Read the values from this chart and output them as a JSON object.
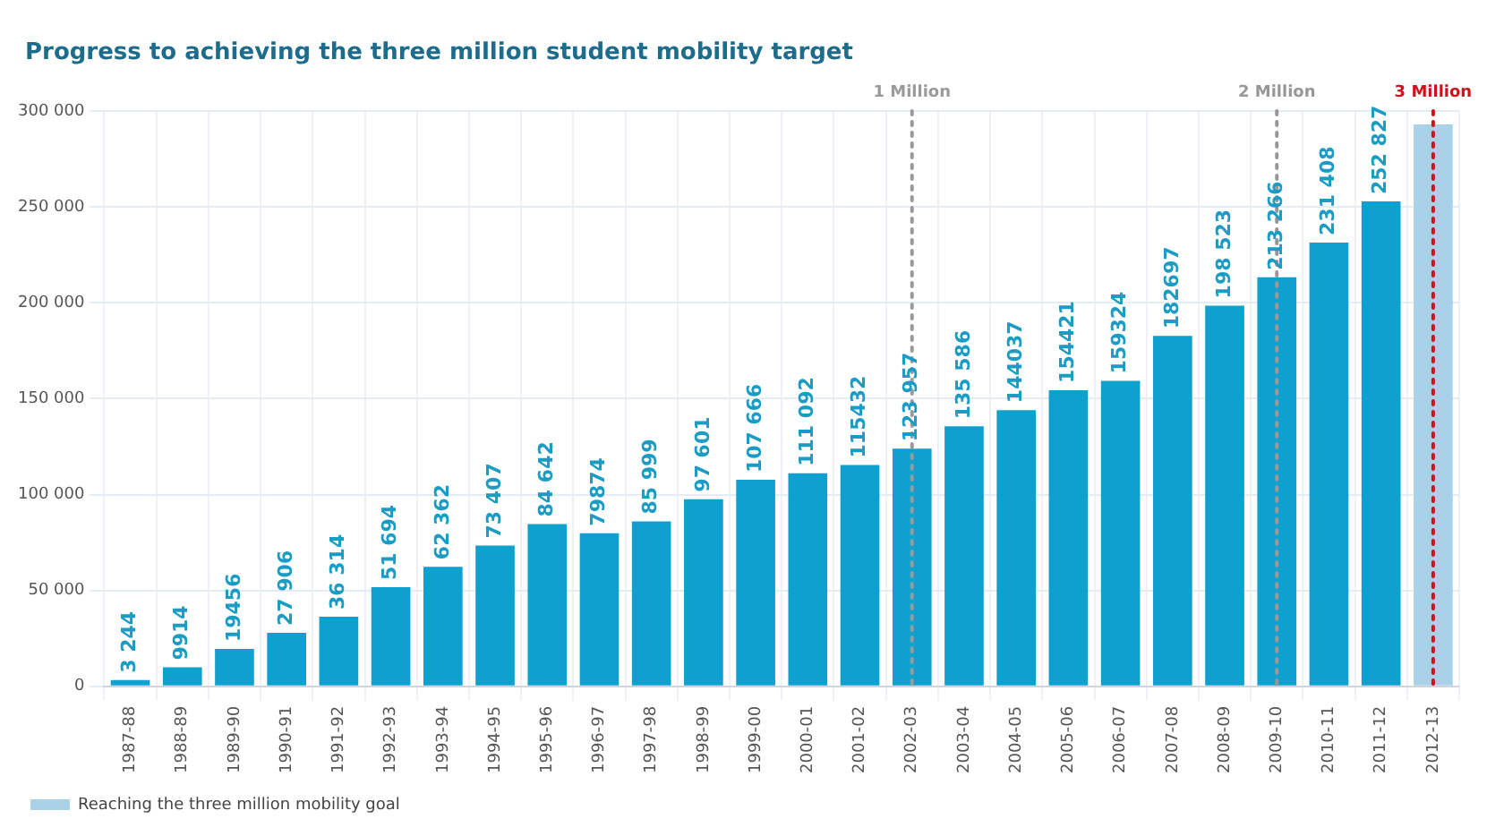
{
  "chart_data": {
    "type": "bar",
    "title": "Progress to achieving the three million student mobility target",
    "categories": [
      "1987-88",
      "1988-89",
      "1989-90",
      "1990-91",
      "1991-92",
      "1992-93",
      "1993-94",
      "1994-95",
      "1995-96",
      "1996-97",
      "1997-98",
      "1998-99",
      "1999-00",
      "2000-01",
      "2001-02",
      "2002-03",
      "2003-04",
      "2004-05",
      "2005-06",
      "2006-07",
      "2007-08",
      "2008-09",
      "2009-10",
      "2010-11",
      "2011-12",
      "2012-13"
    ],
    "stacked": true,
    "series": [
      {
        "color": "#0ea1cf",
        "values": [
          3244,
          9914,
          19456,
          27906,
          36314,
          51694,
          62362,
          73407,
          84642,
          79874,
          85999,
          97601,
          107666,
          111092,
          115432,
          123957,
          135586,
          144037,
          154421,
          159324,
          182697,
          198523,
          213266,
          231408,
          252827,
          null
        ],
        "value_labels": [
          "3 244",
          "9914",
          "19456",
          "27 906",
          "36 314",
          "51 694",
          "62 362",
          "73 407",
          "84 642",
          "79874",
          "85 999",
          "97 601",
          "107 666",
          "111 092",
          "115432",
          "123 957",
          "135 586",
          "144037",
          "154421",
          "159324",
          "182697",
          "198 523",
          "213 266",
          "231 408",
          "252 827",
          null
        ]
      },
      {
        "name": "Reaching the three million mobility goal",
        "color": "#a9d1e8",
        "values": [
          null,
          null,
          null,
          null,
          null,
          null,
          null,
          null,
          null,
          null,
          null,
          null,
          null,
          null,
          null,
          null,
          null,
          null,
          null,
          null,
          null,
          null,
          null,
          null,
          null,
          293000
        ]
      }
    ],
    "ylim": [
      0,
      300000
    ],
    "yticks": [
      {
        "value": 0,
        "label": "0"
      },
      {
        "value": 50000,
        "label": "50 000"
      },
      {
        "value": 100000,
        "label": "100 000"
      },
      {
        "value": 150000,
        "label": "150 000"
      },
      {
        "value": 200000,
        "label": "200 000"
      },
      {
        "value": 250000,
        "label": "250 000"
      },
      {
        "value": 300000,
        "label": "300 000"
      }
    ],
    "ref_lines": [
      {
        "axis": "x",
        "value": "2002-03",
        "label": "1 Million",
        "color": "#9a9a9a",
        "line_style": "dotted"
      },
      {
        "axis": "x",
        "value": "2009-10",
        "label": "2 Million",
        "color": "#979797",
        "line_style": "dotted"
      },
      {
        "axis": "x",
        "value": "2012-13",
        "label": "3 Million",
        "color": "#d0101a",
        "line_style": "dotted"
      }
    ],
    "grid": true,
    "legend": "bottom left"
  }
}
